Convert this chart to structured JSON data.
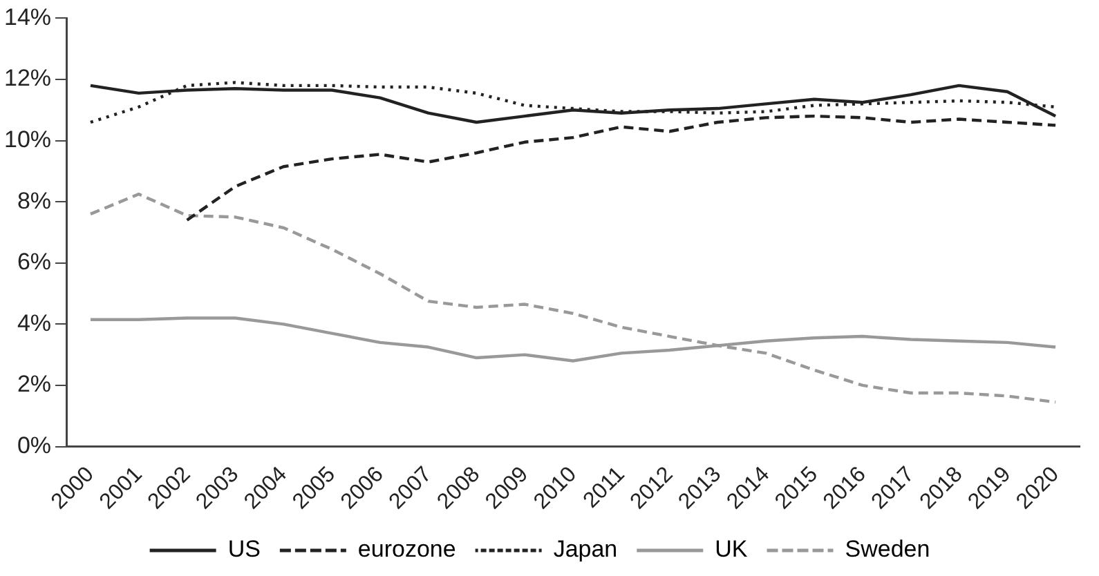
{
  "chart_data": {
    "type": "line",
    "categories": [
      "2000",
      "2001",
      "2002",
      "2003",
      "2004",
      "2005",
      "2006",
      "2007",
      "2008",
      "2009",
      "2010",
      "2011",
      "2012",
      "2013",
      "2014",
      "2015",
      "2016",
      "2017",
      "2018",
      "2019",
      "2020"
    ],
    "ylim": [
      0,
      14
    ],
    "yticks": [
      {
        "value": 0,
        "label": "0%"
      },
      {
        "value": 2,
        "label": "2%"
      },
      {
        "value": 4,
        "label": "4%"
      },
      {
        "value": 6,
        "label": "6%"
      },
      {
        "value": 8,
        "label": "8%"
      },
      {
        "value": 10,
        "label": "10%"
      },
      {
        "value": 12,
        "label": "12%"
      },
      {
        "value": 14,
        "label": "14%"
      }
    ],
    "grid": false,
    "legend": "bottom",
    "marker": "none",
    "series": [
      {
        "name": "US",
        "color": "#222222",
        "line_style": "solid",
        "values": [
          11.8,
          11.55,
          11.65,
          11.7,
          11.65,
          11.65,
          11.4,
          10.9,
          10.6,
          10.8,
          11.0,
          10.9,
          11.0,
          11.05,
          11.2,
          11.35,
          11.25,
          11.5,
          11.8,
          11.6,
          10.8
        ]
      },
      {
        "name": "eurozone",
        "color": "#222222",
        "line_style": "dashed",
        "values": [
          null,
          null,
          7.4,
          8.5,
          9.15,
          9.4,
          9.55,
          9.3,
          9.6,
          9.95,
          10.1,
          10.45,
          10.3,
          10.6,
          10.75,
          10.8,
          10.75,
          10.6,
          10.7,
          10.6,
          10.5
        ]
      },
      {
        "name": "Japan",
        "color": "#222222",
        "line_style": "dotted",
        "values": [
          10.6,
          11.1,
          11.8,
          11.9,
          11.8,
          11.8,
          11.75,
          11.75,
          11.55,
          11.15,
          11.05,
          10.95,
          10.95,
          10.9,
          10.95,
          11.15,
          11.2,
          11.25,
          11.3,
          11.25,
          11.1
        ]
      },
      {
        "name": "UK",
        "color": "#999999",
        "line_style": "solid",
        "values": [
          4.15,
          4.15,
          4.2,
          4.2,
          4.0,
          3.7,
          3.4,
          3.25,
          2.9,
          3.0,
          2.8,
          3.05,
          3.15,
          3.3,
          3.45,
          3.55,
          3.6,
          3.5,
          3.45,
          3.4,
          3.25
        ]
      },
      {
        "name": "Sweden",
        "color": "#999999",
        "line_style": "dashed",
        "values": [
          7.6,
          8.25,
          7.55,
          7.5,
          7.15,
          6.45,
          5.65,
          4.75,
          4.55,
          4.65,
          4.35,
          3.9,
          3.6,
          3.3,
          3.05,
          2.5,
          2.0,
          1.75,
          1.75,
          1.65,
          1.45
        ]
      }
    ]
  }
}
